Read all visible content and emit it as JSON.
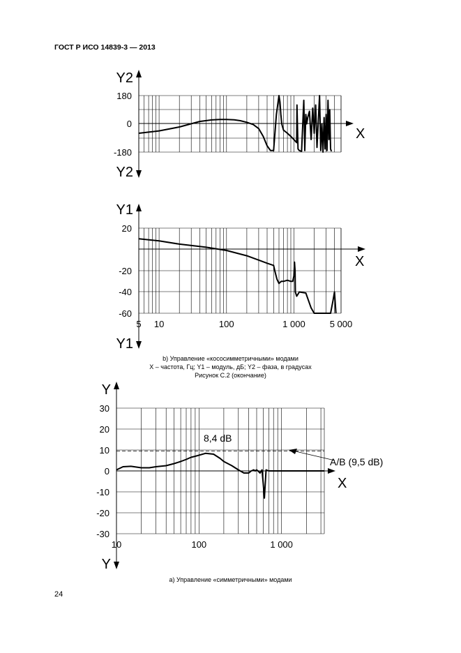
{
  "header": "ГОСТ Р ИСО 14839-3 — 2013",
  "page_number": "24",
  "caption_b": {
    "line1": "b) Управление «кососимметричными» модами",
    "line2": "X – частота, Гц; Y1 – модуль, дБ; Y2 – фаза, в градусах",
    "line3": "Рисунок С.2 (окончание)"
  },
  "caption_a": "a) Управление «симметричными» модами",
  "chart_data": [
    {
      "type": "line",
      "id": "phase",
      "x_scale": "log",
      "xlim": [
        5,
        5000
      ],
      "ylim": [
        -180,
        180
      ],
      "y_ticks": [
        "180",
        "0",
        "-180"
      ],
      "axis_labels": {
        "y_top": "Y2",
        "y_bottom": "Y2",
        "x": "X"
      },
      "series": [
        {
          "x": [
            5,
            10,
            20,
            40,
            60,
            80,
            100,
            130,
            160,
            200,
            250,
            300,
            350,
            400,
            450,
            500,
            550,
            600,
            620,
            640,
            660,
            680,
            700,
            800,
            900,
            1000,
            1050,
            1100,
            1110,
            1150,
            1200,
            1300,
            1400,
            1450,
            1500,
            1550,
            1600,
            1700,
            1800,
            1900,
            2000,
            2100,
            2200,
            2300,
            2400,
            2500,
            2600,
            2700,
            2800,
            2900,
            3000,
            3100,
            3200,
            3300,
            3400,
            3500,
            3600
          ],
          "y": [
            -60,
            -45,
            -20,
            15,
            25,
            28,
            28,
            26,
            20,
            10,
            -5,
            -30,
            -80,
            -140,
            -170,
            -170,
            60,
            180,
            140,
            60,
            0,
            -20,
            -40,
            -60,
            -80,
            -100,
            -110,
            -120,
            120,
            -160,
            -170,
            -175,
            150,
            -170,
            60,
            0,
            40,
            80,
            -100,
            100,
            -60,
            120,
            -150,
            20,
            180,
            -170,
            0,
            -180,
            40,
            -160,
            60,
            -170,
            150,
            -100,
            90,
            -160,
            -175
          ]
        }
      ]
    },
    {
      "type": "line",
      "id": "modulus",
      "x_scale": "log",
      "xlim": [
        5,
        5000
      ],
      "ylim": [
        -60,
        20
      ],
      "y_ticks": [
        "20",
        "-20",
        "-40",
        "-60"
      ],
      "x_ticks": [
        {
          "value": 5,
          "label": "5"
        },
        {
          "value": 10,
          "label": "10"
        },
        {
          "value": 100,
          "label": "100"
        },
        {
          "value": 1000,
          "label": "1 000"
        },
        {
          "value": 5000,
          "label": "5 000"
        }
      ],
      "axis_labels": {
        "y_top": "Y1",
        "y_bottom": "Y1",
        "x": "X"
      },
      "series": [
        {
          "x": [
            5,
            10,
            20,
            50,
            100,
            200,
            300,
            400,
            500,
            520,
            560,
            600,
            650,
            700,
            800,
            900,
            960,
            1000,
            1020,
            1040,
            1050,
            1100,
            1150,
            1200,
            1500,
            1800,
            2000,
            2100,
            2500,
            3500,
            3800,
            4000,
            4200
          ],
          "y": [
            10,
            8,
            5,
            2,
            -1,
            -6,
            -10,
            -13,
            -15,
            -20,
            -28,
            -32,
            -30,
            -30,
            -29,
            -30,
            -30,
            -25,
            -12,
            -20,
            -40,
            -44,
            -42,
            -40,
            -41,
            -55,
            -60,
            -60,
            -60,
            -60,
            -48,
            -40,
            -60
          ]
        }
      ]
    },
    {
      "type": "line",
      "id": "symmetric",
      "x_scale": "log",
      "xlim": [
        10,
        3300
      ],
      "ylim": [
        -30,
        30
      ],
      "y_ticks": [
        "30",
        "20",
        "10",
        "0",
        "-10",
        "-20",
        "-30"
      ],
      "x_ticks": [
        {
          "value": 10,
          "label": "10"
        },
        {
          "value": 100,
          "label": "100"
        },
        {
          "value": 1000,
          "label": "1 000"
        }
      ],
      "axis_labels": {
        "y_top": "Y",
        "y_bottom": "Y",
        "x": "X"
      },
      "annotations": {
        "peak": "8,4 dB",
        "reference": "A/B (9,5 dB)"
      },
      "reference_line": 9.5,
      "series": [
        {
          "x": [
            10,
            12,
            15,
            20,
            25,
            30,
            40,
            50,
            60,
            70,
            80,
            90,
            100,
            120,
            150,
            180,
            200,
            250,
            300,
            350,
            400,
            430,
            460,
            480,
            500,
            520,
            550,
            580,
            600,
            620,
            650,
            700,
            800,
            1000,
            2000,
            3300
          ],
          "y": [
            0.5,
            2,
            2.2,
            1.5,
            1.5,
            2,
            2.5,
            3.5,
            4.5,
            5.5,
            6.5,
            7,
            7.5,
            8.4,
            8,
            6,
            4.5,
            2.5,
            0.5,
            -1,
            -1,
            0,
            0.5,
            0,
            0.5,
            0,
            -1,
            0.5,
            -6,
            -13,
            0.5,
            0,
            0,
            0,
            0,
            0
          ]
        }
      ]
    }
  ]
}
